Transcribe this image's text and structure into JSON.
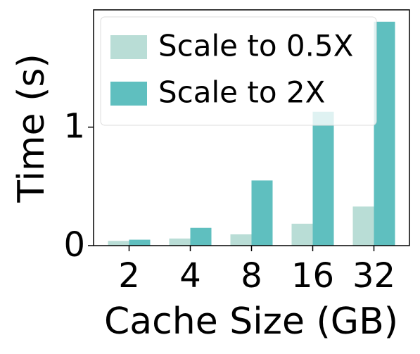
{
  "chart_data": {
    "type": "bar",
    "x_label": "Cache Size (GB)",
    "y_label": "Time (s)",
    "categories": [
      "2",
      "4",
      "8",
      "16",
      "32"
    ],
    "series": [
      {
        "name": "Scale to 0.5X",
        "color": "#b9ddd6",
        "values": [
          0.04,
          0.06,
          0.095,
          0.185,
          0.33
        ]
      },
      {
        "name": "Scale to 2X",
        "color": "#5fbfbf",
        "values": [
          0.05,
          0.15,
          0.55,
          1.13,
          1.89
        ]
      }
    ],
    "ylim": [
      0,
      1.99
    ],
    "yticks": [
      0,
      1
    ],
    "legend": "upper left"
  }
}
